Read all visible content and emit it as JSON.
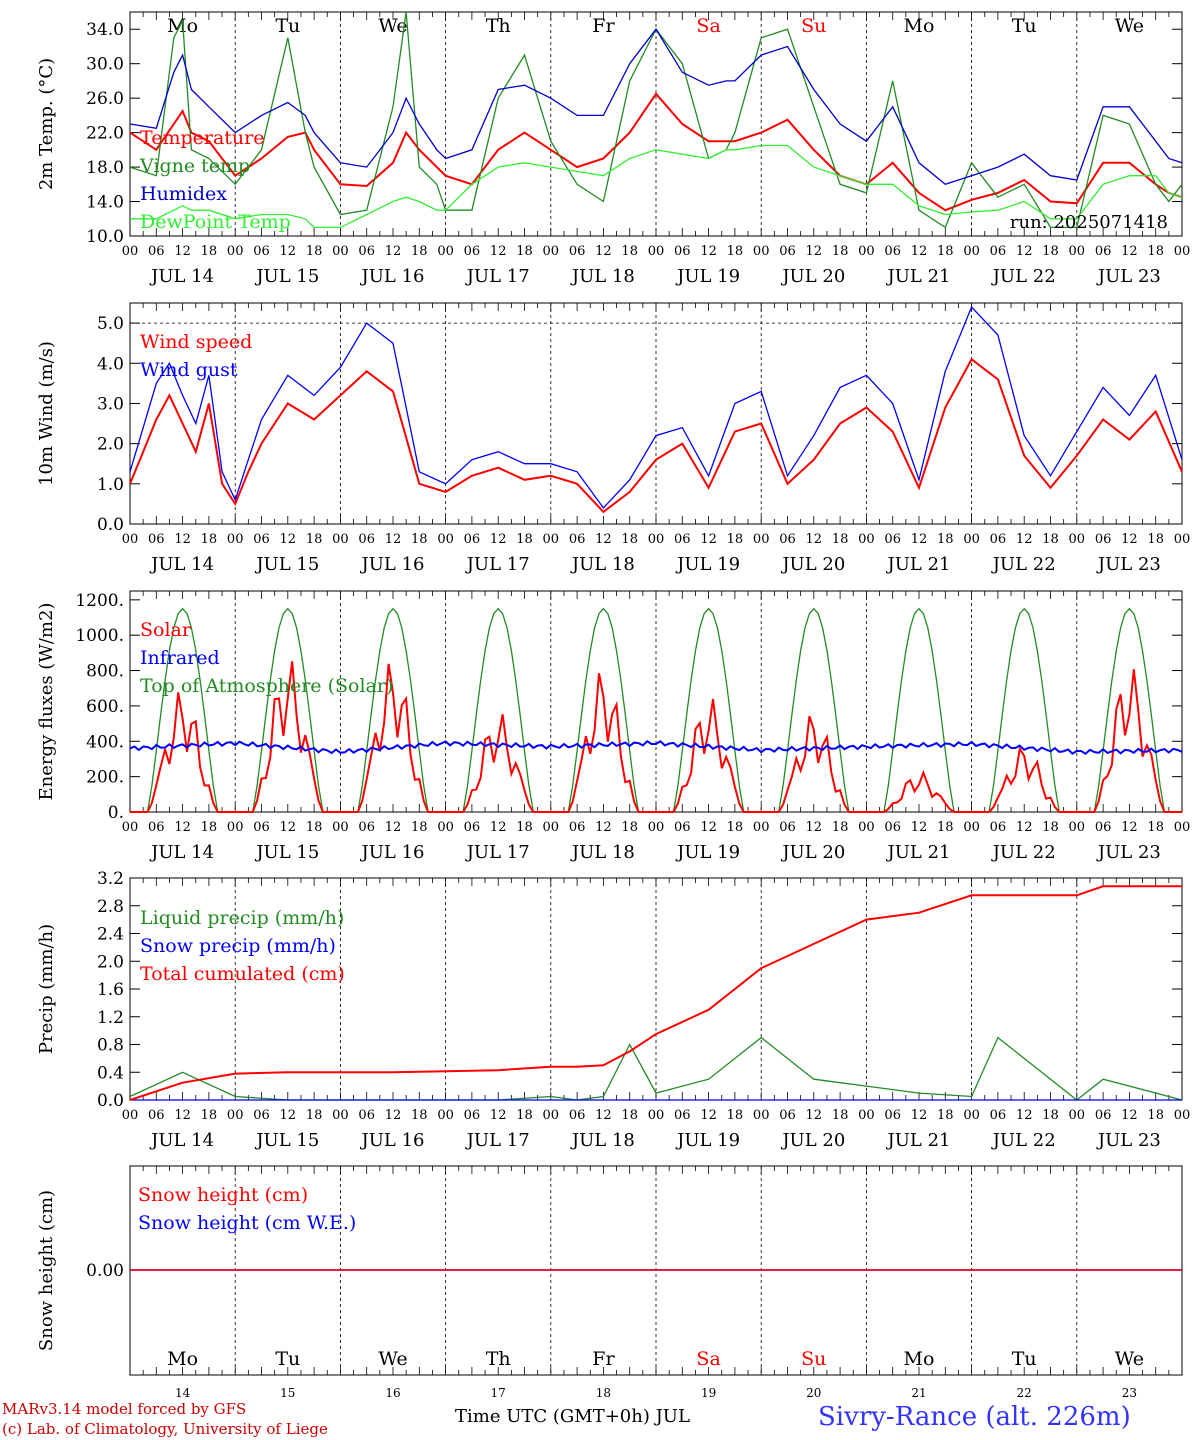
{
  "xaxis": {
    "hour_ticks": [
      "00",
      "06",
      "12",
      "18"
    ],
    "end_tick": "00",
    "dates": [
      "JUL 14",
      "JUL 15",
      "JUL 16",
      "JUL 17",
      "JUL 18",
      "JUL 19",
      "JUL 20",
      "JUL 21",
      "JUL 22",
      "JUL 23"
    ],
    "weekdays": [
      "Mo",
      "Tu",
      "We",
      "Th",
      "Fr",
      "Sa",
      "Su",
      "Mo",
      "Tu",
      "We"
    ],
    "weekday_colors": [
      "#000000",
      "#000000",
      "#000000",
      "#000000",
      "#000000",
      "#ff0000",
      "#ff0000",
      "#000000",
      "#000000",
      "#000000"
    ],
    "day_numbers": [
      "14",
      "15",
      "16",
      "17",
      "18",
      "19",
      "20",
      "21",
      "22",
      "23"
    ],
    "title": "Time UTC (GMT+0h) JUL"
  },
  "footer": {
    "credit_line1": "MARv3.14 model forced by GFS",
    "credit_line2": "(c) Lab. of Climatology, University of Liege",
    "station": "Sivry-Rance (alt. 226m)"
  },
  "chart_data": [
    {
      "type": "line",
      "ylabel": "2m Temp. (°C)",
      "ylim": [
        10,
        36
      ],
      "yticks": [
        "10.0",
        "14.0",
        "18.0",
        "22.0",
        "26.0",
        "30.0",
        "34.0"
      ],
      "run_label": "run: 2025071418",
      "x_hours": [
        0,
        6,
        10,
        12,
        14,
        18,
        24,
        30,
        36,
        40,
        42,
        48,
        54,
        60,
        63,
        66,
        70,
        72,
        78,
        84,
        90,
        96,
        102,
        108,
        114,
        120,
        126,
        132,
        136,
        138,
        144,
        150,
        156,
        162,
        168,
        174,
        180,
        186,
        192,
        198,
        204,
        210,
        216,
        222,
        228,
        234,
        237,
        240
      ],
      "series": [
        {
          "name": "Temperature",
          "color": "#ff0000",
          "values": [
            22,
            20,
            23,
            24.5,
            22,
            21,
            17,
            19,
            21.5,
            22,
            20,
            16,
            15.8,
            18.5,
            22,
            20,
            18,
            17,
            16,
            20,
            22,
            20,
            18,
            19,
            22,
            26.5,
            23,
            21,
            21,
            21,
            22,
            23.5,
            20,
            17,
            16,
            18.5,
            15,
            13,
            14.2,
            15,
            16.5,
            14,
            13.8,
            18.5,
            18.5,
            16,
            15,
            14.5
          ]
        },
        {
          "name": "Vigne temp",
          "color": "#228b22",
          "values": [
            18,
            17,
            33,
            35,
            20,
            19,
            16,
            20,
            33,
            22,
            18,
            12.5,
            13,
            25,
            36,
            18,
            16,
            13,
            13,
            26,
            31,
            21,
            16,
            14,
            28,
            34,
            30,
            19,
            20,
            22,
            33,
            34,
            25,
            16,
            15,
            28,
            13,
            11,
            18.5,
            14.5,
            16,
            11,
            11,
            24,
            23,
            16,
            14,
            16
          ]
        },
        {
          "name": "Humidex",
          "color": "#0000cd",
          "values": [
            23,
            22.5,
            29,
            31,
            27,
            25,
            22,
            24,
            25.5,
            24,
            22,
            18.5,
            18,
            22,
            26,
            23,
            20,
            19,
            20,
            27,
            27.5,
            26,
            24,
            24,
            30,
            34,
            29,
            27.5,
            28,
            28,
            31,
            32,
            27,
            23,
            21,
            25,
            18.5,
            16,
            17,
            18,
            19.5,
            17,
            16.5,
            25,
            25,
            21,
            19,
            18.5
          ]
        },
        {
          "name": "DewPoint Temp",
          "color": "#33ee33",
          "values": [
            12,
            12,
            13,
            13.5,
            13,
            13,
            12,
            12.5,
            12.5,
            12,
            11,
            11,
            12.5,
            14,
            14.5,
            14,
            13,
            13,
            16,
            18,
            18.5,
            18,
            17.5,
            17,
            19,
            20,
            19.5,
            19,
            20,
            20,
            20.5,
            20.5,
            18,
            17,
            16,
            16,
            13.5,
            12.5,
            12.8,
            13,
            14,
            12,
            12,
            16,
            17,
            17,
            15,
            14.5
          ]
        }
      ]
    },
    {
      "type": "line",
      "ylabel": "10m Wind (m/s)",
      "ylim": [
        0,
        5.5
      ],
      "yticks": [
        "0.0",
        "1.0",
        "2.0",
        "3.0",
        "4.0",
        "5.0"
      ],
      "x_hours": [
        0,
        3,
        6,
        9,
        12,
        15,
        18,
        21,
        24,
        27,
        30,
        36,
        42,
        48,
        54,
        60,
        66,
        72,
        78,
        84,
        90,
        96,
        102,
        108,
        114,
        120,
        126,
        132,
        138,
        144,
        150,
        156,
        162,
        168,
        174,
        180,
        186,
        192,
        198,
        204,
        210,
        216,
        222,
        228,
        234,
        240
      ],
      "series": [
        {
          "name": "Wind speed",
          "color": "#ff0000",
          "values": [
            1,
            1.8,
            2.6,
            3.2,
            2.5,
            1.8,
            3,
            1,
            0.5,
            1.3,
            2,
            3,
            2.6,
            3.2,
            3.8,
            3.3,
            1,
            0.8,
            1.2,
            1.4,
            1.1,
            1.2,
            1,
            0.3,
            0.8,
            1.6,
            2,
            0.9,
            2.3,
            2.5,
            1,
            1.6,
            2.5,
            2.9,
            2.3,
            0.9,
            2.9,
            4.1,
            3.6,
            1.7,
            0.9,
            1.7,
            2.6,
            2.1,
            2.8,
            1.3
          ]
        },
        {
          "name": "Wind gust",
          "color": "#0000ff",
          "values": [
            1.3,
            2.4,
            3.5,
            4,
            3.2,
            2.5,
            3.7,
            1.3,
            0.6,
            1.6,
            2.6,
            3.7,
            3.2,
            3.9,
            5,
            4.5,
            1.3,
            1,
            1.6,
            1.8,
            1.5,
            1.5,
            1.3,
            0.4,
            1.1,
            2.2,
            2.4,
            1.2,
            3,
            3.3,
            1.2,
            2.2,
            3.4,
            3.7,
            3,
            1.1,
            3.8,
            5.4,
            4.7,
            2.2,
            1.2,
            2.3,
            3.4,
            2.7,
            3.7,
            1.6
          ]
        }
      ]
    },
    {
      "type": "line",
      "ylabel": "Energy fluxes (W/m2)",
      "ylim": [
        0,
        1250
      ],
      "yticks": [
        "0.",
        "200.",
        "400.",
        "600.",
        "800.",
        "1000.",
        "1200."
      ],
      "series": [
        {
          "name": "Solar",
          "color": "#ff0000",
          "peaks": [
            700,
            880,
            870,
            570,
            820,
            660,
            570,
            230,
            380,
            840
          ]
        },
        {
          "name": "Infrared",
          "color": "#0000ff",
          "values": [
            360,
            390,
            340,
            390,
            370,
            390,
            350,
            370,
            385,
            340,
            350
          ]
        },
        {
          "name": "Top of Atmosphere (Solar)",
          "color": "#228b22",
          "peak": 1150
        }
      ]
    },
    {
      "type": "line",
      "ylabel": "Precip (mm/h)",
      "ylim": [
        0,
        3.2
      ],
      "yticks": [
        "0.0",
        "0.4",
        "0.8",
        "1.2",
        "1.6",
        "2.0",
        "2.4",
        "2.8",
        "3.2"
      ],
      "x_hours": [
        0,
        12,
        24,
        36,
        60,
        84,
        96,
        102,
        108,
        114,
        120,
        132,
        144,
        156,
        168,
        180,
        192,
        198,
        216,
        222,
        240
      ],
      "series": [
        {
          "name": "Liquid precip (mm/h)",
          "color": "#228b22",
          "values": [
            0.05,
            0.4,
            0.05,
            0,
            0,
            0,
            0.05,
            0,
            0.05,
            0.8,
            0.1,
            0.3,
            0.9,
            0.3,
            0.2,
            0.1,
            0.05,
            0.9,
            0,
            0.3,
            0
          ]
        },
        {
          "name": "Snow precip (mm/h)",
          "color": "#0000ff",
          "values": [
            0,
            0,
            0,
            0,
            0,
            0,
            0,
            0,
            0,
            0,
            0,
            0,
            0,
            0,
            0,
            0,
            0,
            0,
            0,
            0,
            0
          ]
        },
        {
          "name": "Total cumulated (cm)",
          "color": "#ff0000",
          "values": [
            0,
            0.25,
            0.38,
            0.4,
            0.4,
            0.43,
            0.48,
            0.48,
            0.5,
            0.7,
            0.95,
            1.3,
            1.9,
            2.25,
            2.6,
            2.7,
            2.95,
            2.95,
            2.95,
            3.08,
            3.08
          ]
        }
      ]
    },
    {
      "type": "line",
      "ylabel": "Snow height (cm)",
      "yticks": [
        "0.00"
      ],
      "series": [
        {
          "name": "Snow height (cm)",
          "color": "#ff0000",
          "values": [
            0,
            0
          ]
        },
        {
          "name": "Snow height (cm W.E.)",
          "color": "#0000ff",
          "values": [
            0,
            0
          ]
        }
      ]
    }
  ]
}
